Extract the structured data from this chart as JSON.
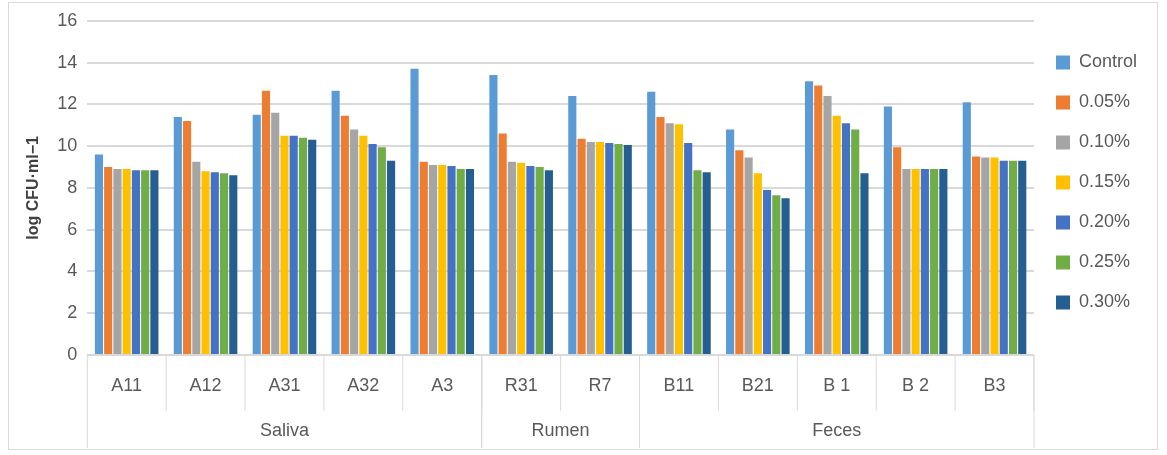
{
  "chart_data": {
    "type": "bar",
    "categories": [
      "A11",
      "A12",
      "A31",
      "A32",
      "A3",
      "R31",
      "R7",
      "B11",
      "B21",
      "B 1",
      "B 2",
      "B3"
    ],
    "series": [
      {
        "name": "Control",
        "color": "#5b9bd5",
        "values": [
          9.6,
          11.4,
          11.5,
          12.65,
          13.7,
          13.4,
          12.4,
          12.6,
          10.8,
          13.1,
          11.9,
          12.1
        ]
      },
      {
        "name": "0.05%",
        "color": "#ed7d31",
        "values": [
          9.0,
          11.2,
          12.65,
          11.45,
          9.25,
          10.6,
          10.35,
          11.4,
          9.8,
          12.9,
          9.95,
          9.5
        ]
      },
      {
        "name": "0.10%",
        "color": "#a5a5a5",
        "values": [
          8.9,
          9.25,
          11.6,
          10.8,
          9.1,
          9.25,
          10.2,
          11.1,
          9.45,
          12.4,
          8.9,
          9.45
        ]
      },
      {
        "name": "0.15%",
        "color": "#ffc000",
        "values": [
          8.9,
          8.8,
          10.5,
          10.5,
          9.1,
          9.2,
          10.2,
          11.05,
          8.7,
          11.45,
          8.9,
          9.45
        ]
      },
      {
        "name": "0.20%",
        "color": "#4472c4",
        "values": [
          8.85,
          8.75,
          10.5,
          10.1,
          9.05,
          9.05,
          10.15,
          10.15,
          7.9,
          11.1,
          8.9,
          9.3
        ]
      },
      {
        "name": "0.25%",
        "color": "#70ad47",
        "values": [
          8.85,
          8.7,
          10.4,
          9.95,
          8.9,
          9.0,
          10.1,
          8.85,
          7.65,
          10.8,
          8.9,
          9.3
        ]
      },
      {
        "name": "0.30%",
        "color": "#255e91",
        "values": [
          8.85,
          8.6,
          10.3,
          9.3,
          8.9,
          8.85,
          10.05,
          8.75,
          7.5,
          8.7,
          8.9,
          9.3
        ]
      }
    ],
    "ylabel": "log CFU·ml−1",
    "ylim": [
      0,
      16
    ],
    "yticks": [
      0,
      2,
      4,
      6,
      8,
      10,
      12,
      14,
      16
    ],
    "grid": "y",
    "legend": "right",
    "annotations": [
      "Saliva",
      "Rumen",
      "Feces"
    ]
  }
}
